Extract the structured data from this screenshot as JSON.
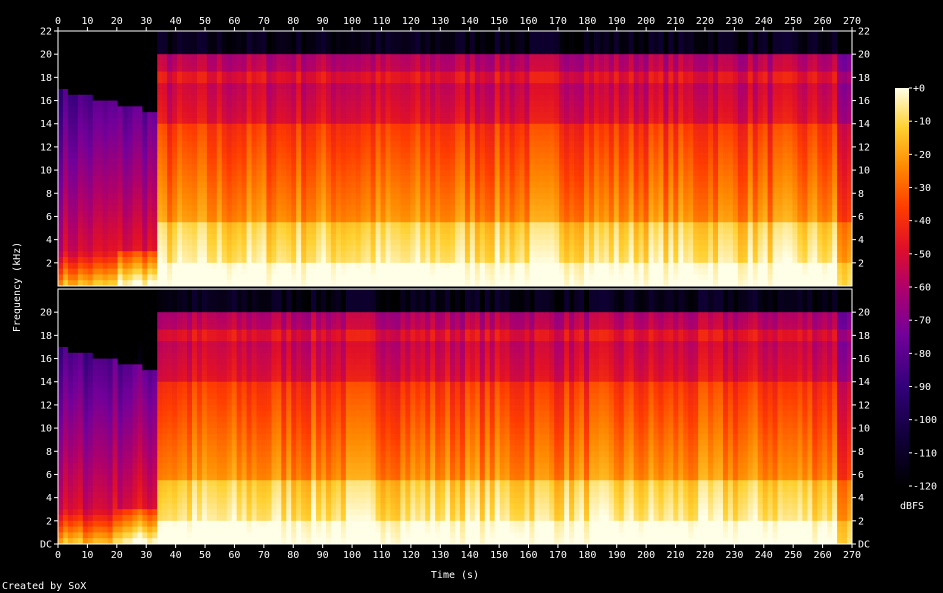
{
  "chart_data": {
    "type": "heatmap",
    "subtype": "spectrogram",
    "channels": 2,
    "xlabel": "Time (s)",
    "ylabel": "Frequency (kHz)",
    "xlim": [
      0,
      270
    ],
    "x_ticks": [
      "0",
      "10",
      "20",
      "30",
      "40",
      "50",
      "60",
      "70",
      "80",
      "90",
      "100",
      "110",
      "120",
      "130",
      "140",
      "150",
      "160",
      "170",
      "180",
      "190",
      "200",
      "210",
      "220",
      "230",
      "240",
      "250",
      "260",
      "270"
    ],
    "top_channel_y_ticks": [
      "22",
      "20",
      "18",
      "16",
      "14",
      "12",
      "10",
      "8",
      "6",
      "4",
      "2"
    ],
    "bottom_channel_y_ticks": [
      "20",
      "18",
      "16",
      "14",
      "12",
      "10",
      "8",
      "6",
      "4",
      "2",
      "DC"
    ],
    "ylim_khz": [
      0,
      22
    ],
    "colorbar": {
      "label": "dBFS",
      "ticks": [
        "+0",
        "-10",
        "-20",
        "-30",
        "-40",
        "-50",
        "-60",
        "-70",
        "-80",
        "-90",
        "-100",
        "-110",
        "-120"
      ],
      "range_db": [
        -120,
        0
      ]
    },
    "structure": {
      "quiet_intro_until_s": 33,
      "full_band_after_s": 33,
      "lowpass_cutoff_khz": 20,
      "persistent_tone_khz": 18,
      "energy_drop_s": 265
    }
  },
  "footer": {
    "credit": "Created by SoX"
  }
}
